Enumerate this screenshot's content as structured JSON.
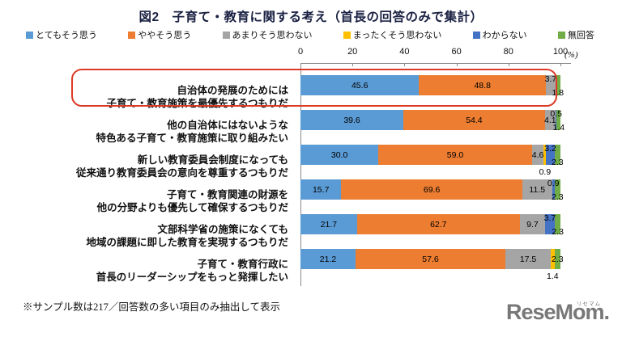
{
  "title": "図2　子育て・教育に関する考え（首長の回答のみで集計）",
  "footnote": "※サンプル数は217／回答数の多い項目のみ抽出して表示",
  "logo": {
    "text": "ReseMom.",
    "ruby": "リセマム"
  },
  "axis": {
    "unit_label": "(%)"
  },
  "chart_data": {
    "type": "bar",
    "stacked": true,
    "orientation": "horizontal",
    "xlim": [
      0,
      100
    ],
    "x_ticks": [
      0,
      20,
      40,
      60,
      80,
      100
    ],
    "unit": "%",
    "grid": false,
    "legend_position": "top",
    "highlight_row_index": 0,
    "sample_size_note": "サンプル数は217",
    "series_keys": [
      {
        "id": "very",
        "label": "とてもそう思う",
        "color": "#5b9bd5"
      },
      {
        "id": "somewhat",
        "label": "ややそう思う",
        "color": "#ed7d31"
      },
      {
        "id": "not_really",
        "label": "あまりそう思わない",
        "color": "#a5a5a5"
      },
      {
        "id": "not_at_all",
        "label": "まったくそう思わない",
        "color": "#ffc000"
      },
      {
        "id": "dont_know",
        "label": "わからない",
        "color": "#4472c4"
      },
      {
        "id": "no_answer",
        "label": "無回答",
        "color": "#70ad47"
      }
    ],
    "rows": [
      {
        "label_lines": [
          "自治体の発展のためには",
          "子育て・教育施策を最優先するつもりだ"
        ],
        "highlighted": true,
        "segments": [
          {
            "key": "very",
            "value": 45.6,
            "label_pos": "in"
          },
          {
            "key": "somewhat",
            "value": 48.8,
            "label_pos": "in"
          },
          {
            "key": "not_really",
            "value": 3.7,
            "label_pos": "up"
          },
          {
            "key": "no_answer",
            "value": 1.8,
            "label_pos": "dn"
          }
        ]
      },
      {
        "label_lines": [
          "他の自治体にはないような",
          "特色ある子育て・教育施策に取り組みたい"
        ],
        "highlighted": false,
        "segments": [
          {
            "key": "very",
            "value": 39.6,
            "label_pos": "in"
          },
          {
            "key": "somewhat",
            "value": 54.4,
            "label_pos": "in"
          },
          {
            "key": "not_really",
            "value": 4.1,
            "label_pos": "in"
          },
          {
            "key": "dont_know",
            "value": 0.5,
            "label_pos": "up"
          },
          {
            "key": "no_answer",
            "value": 1.4,
            "label_pos": "dn"
          }
        ]
      },
      {
        "label_lines": [
          "新しい教育委員会制度になっても",
          "従来通り教育委員会の意向を尊重するつもりだ"
        ],
        "highlighted": false,
        "segments": [
          {
            "key": "very",
            "value": 30.0,
            "label_pos": "in"
          },
          {
            "key": "somewhat",
            "value": 59.0,
            "label_pos": "in"
          },
          {
            "key": "not_really",
            "value": 4.6,
            "label_pos": "in"
          },
          {
            "key": "not_at_all",
            "value": 0.9,
            "label_pos": "out"
          },
          {
            "key": "dont_know",
            "value": 3.2,
            "label_pos": "up"
          },
          {
            "key": "no_answer",
            "value": 2.3,
            "label_pos": "dn"
          }
        ]
      },
      {
        "label_lines": [
          "子育て・教育関連の財源を",
          "他の分野よりも優先して確保するつもりだ"
        ],
        "highlighted": false,
        "segments": [
          {
            "key": "very",
            "value": 15.7,
            "label_pos": "in"
          },
          {
            "key": "somewhat",
            "value": 69.6,
            "label_pos": "in"
          },
          {
            "key": "not_really",
            "value": 11.5,
            "label_pos": "in"
          },
          {
            "key": "dont_know",
            "value": 0.9,
            "label_pos": "up"
          },
          {
            "key": "no_answer",
            "value": 2.3,
            "label_pos": "dn"
          }
        ]
      },
      {
        "label_lines": [
          "文部科学省の施策になくても",
          "地域の課題に即した教育を実現するつもりだ"
        ],
        "highlighted": false,
        "segments": [
          {
            "key": "very",
            "value": 21.7,
            "label_pos": "in"
          },
          {
            "key": "somewhat",
            "value": 62.7,
            "label_pos": "in"
          },
          {
            "key": "not_really",
            "value": 9.7,
            "label_pos": "in"
          },
          {
            "key": "dont_know",
            "value": 3.7,
            "label_pos": "up"
          },
          {
            "key": "no_answer",
            "value": 2.3,
            "label_pos": "dn"
          }
        ]
      },
      {
        "label_lines": [
          "子育て・教育行政に",
          "首長のリーダーシップをもっと発揮したい"
        ],
        "highlighted": false,
        "segments": [
          {
            "key": "very",
            "value": 21.2,
            "label_pos": "in"
          },
          {
            "key": "somewhat",
            "value": 57.6,
            "label_pos": "in"
          },
          {
            "key": "not_really",
            "value": 17.5,
            "label_pos": "in"
          },
          {
            "key": "not_at_all",
            "value": 1.4,
            "label_pos": "out"
          },
          {
            "key": "no_answer",
            "value": 2.3,
            "label_pos": "in"
          }
        ]
      }
    ]
  }
}
